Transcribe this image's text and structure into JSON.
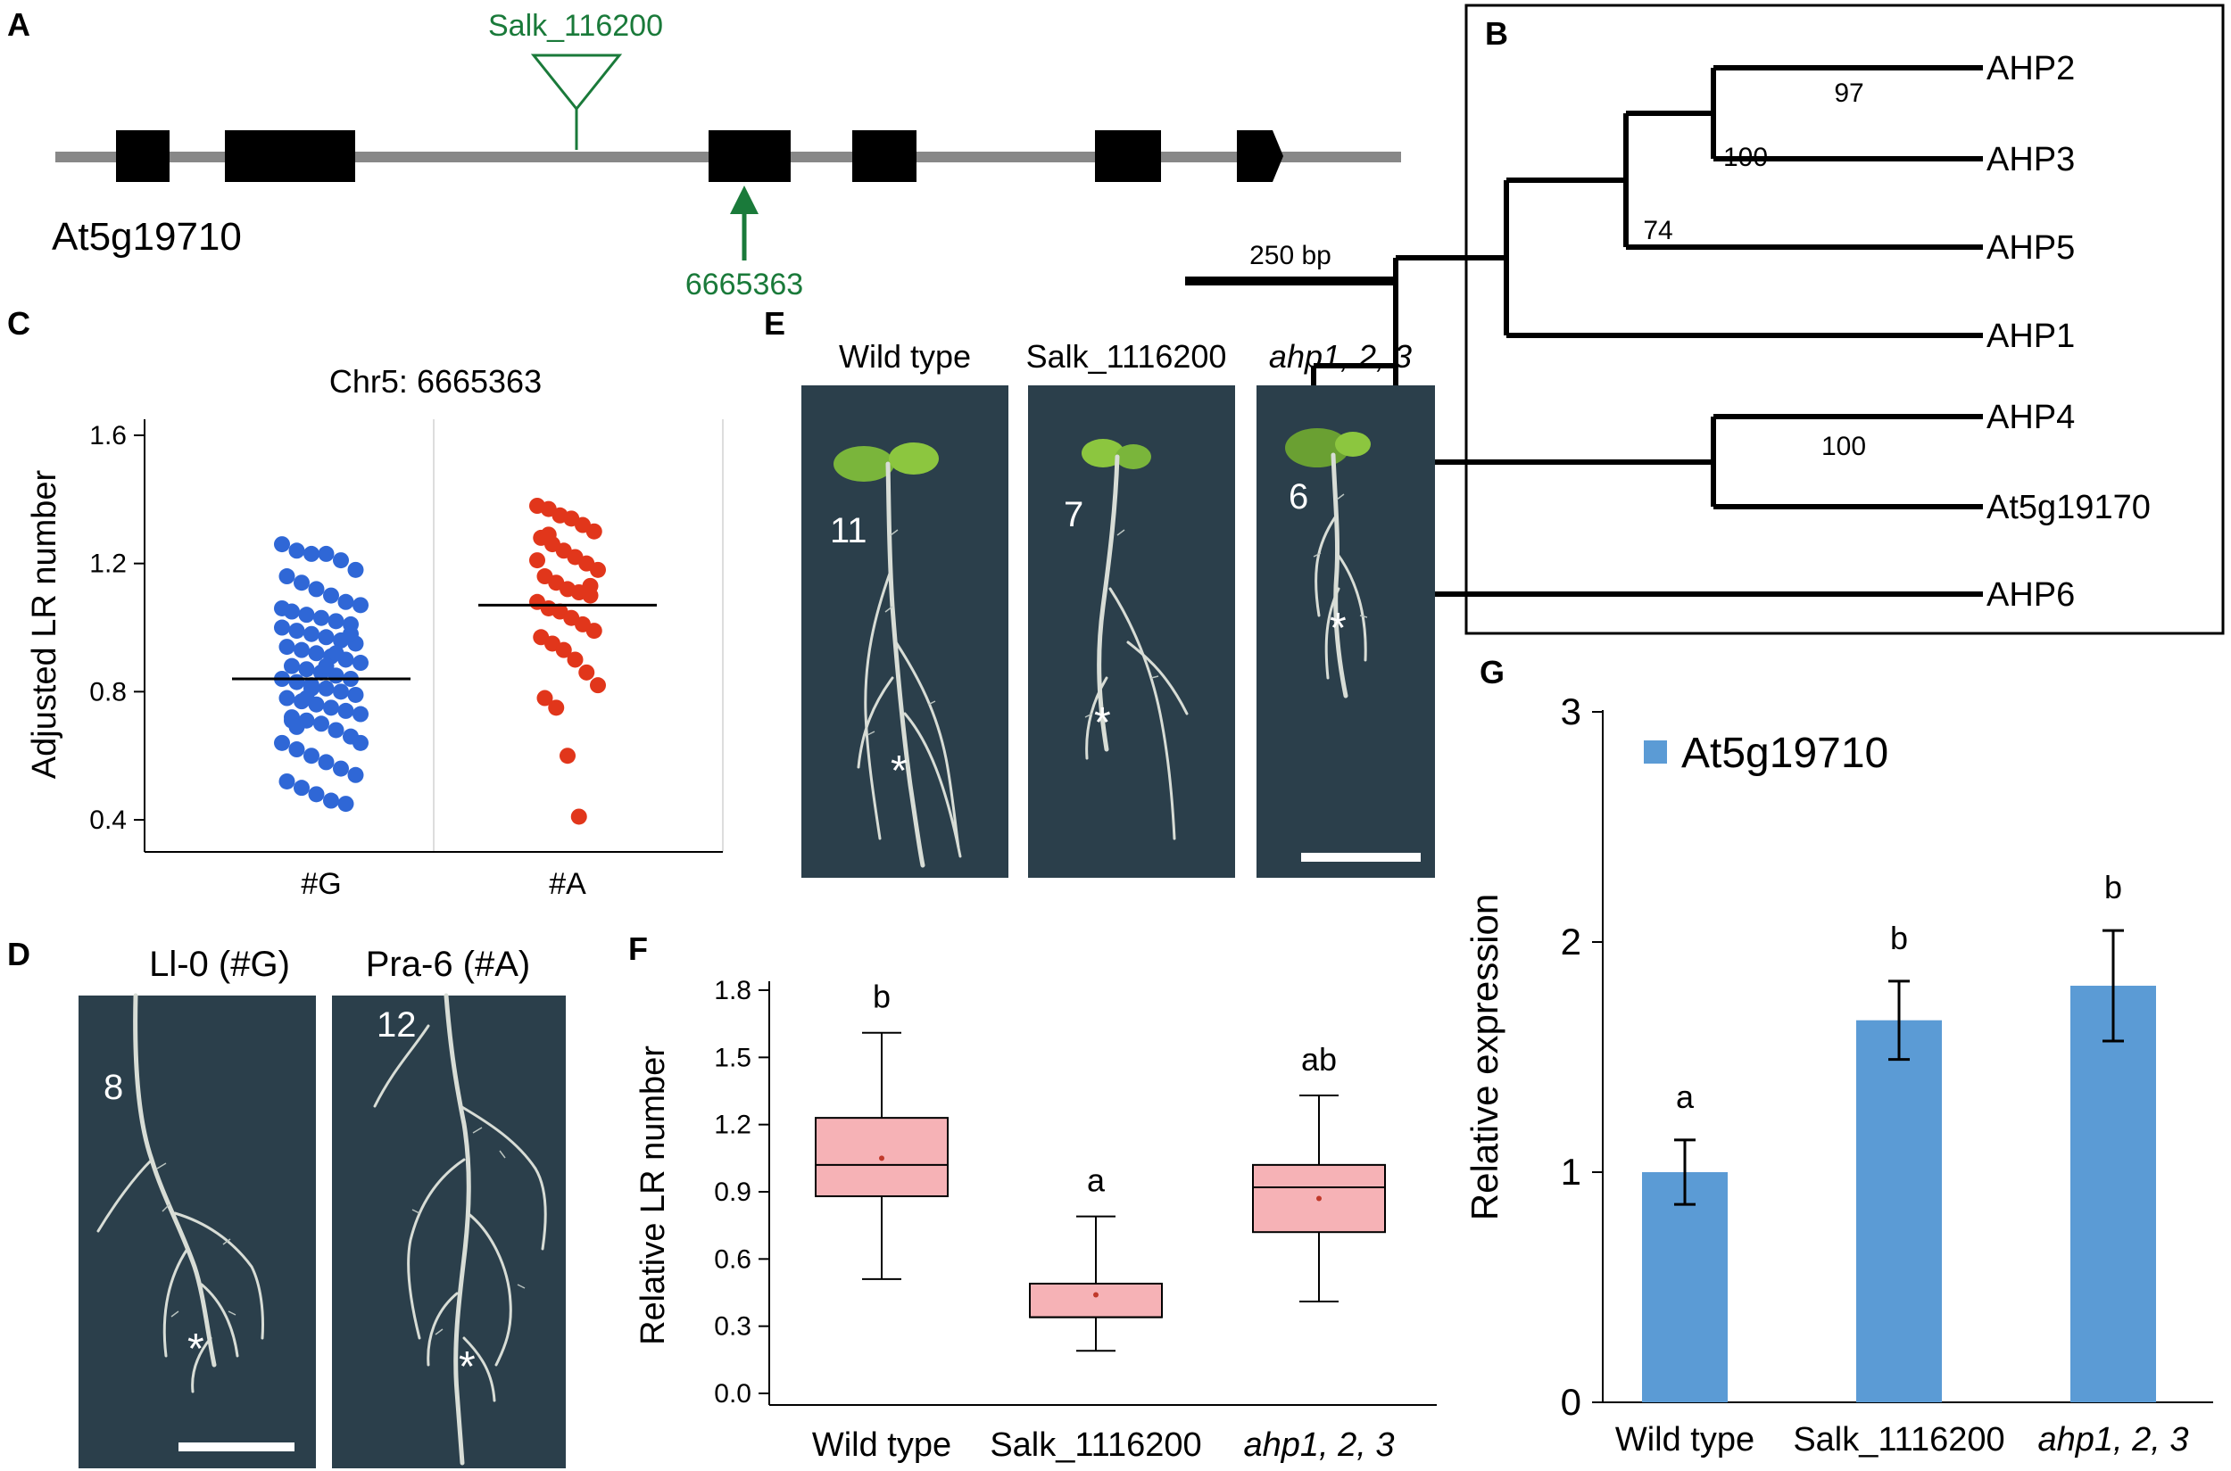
{
  "panel_labels": [
    "A",
    "B",
    "C",
    "D",
    "E",
    "F",
    "G"
  ],
  "panel_a": {
    "gene": "At5g19710",
    "insertion_label": "Salk_116200",
    "snp_position": "6665363",
    "scale_bar_label": "250 bp",
    "colors": {
      "gene_line": "#888888",
      "exon": "#000000",
      "annotation": "#1a7a3a"
    }
  },
  "panel_b": {
    "leaves": [
      "AHP2",
      "AHP3",
      "AHP5",
      "AHP1",
      "AHP4",
      "At5g19170",
      "AHP6"
    ],
    "bootstrap": [
      "97",
      "100",
      "74",
      "100"
    ]
  },
  "panel_c": {
    "chart_data": {
      "type": "scatter",
      "title": "Chr5: 6665363",
      "ylabel": "Adjusted LR number",
      "xlabel": "",
      "categories": [
        "#G",
        "#A"
      ],
      "yticks": [
        "1.6",
        "1.2",
        "0.8",
        "0.4"
      ],
      "ylim": [
        0.3,
        1.65
      ],
      "series": [
        {
          "name": "#G",
          "color": "#2f67d6",
          "mean": 0.84,
          "values": [
            1.26,
            1.24,
            1.23,
            1.23,
            1.21,
            1.18,
            1.16,
            1.14,
            1.12,
            1.1,
            1.08,
            1.07,
            1.05,
            1.04,
            1.03,
            1.02,
            1.01,
            1.0,
            0.99,
            0.98,
            0.97,
            0.96,
            0.95,
            0.94,
            0.93,
            0.92,
            0.91,
            0.9,
            0.89,
            0.88,
            0.87,
            0.86,
            0.85,
            0.84,
            0.84,
            0.83,
            0.82,
            0.81,
            0.8,
            0.79,
            0.78,
            0.77,
            0.76,
            0.75,
            0.74,
            0.73,
            0.72,
            0.71,
            0.7,
            0.68,
            0.66,
            0.64,
            0.62,
            0.6,
            0.58,
            0.56,
            0.54,
            0.52,
            0.5,
            0.48,
            0.46,
            0.45,
            0.64,
            0.71,
            0.78,
            0.86,
            0.92,
            0.98,
            1.06,
            0.69,
            0.81,
            0.88
          ]
        },
        {
          "name": "#A",
          "color": "#e1361b",
          "mean": 1.07,
          "values": [
            1.38,
            1.37,
            1.35,
            1.34,
            1.32,
            1.3,
            1.28,
            1.26,
            1.24,
            1.22,
            1.2,
            1.18,
            1.16,
            1.14,
            1.12,
            1.11,
            1.1,
            1.08,
            1.06,
            1.05,
            1.03,
            1.01,
            0.99,
            0.97,
            0.95,
            0.93,
            0.9,
            0.86,
            0.82,
            0.78,
            0.75,
            0.6,
            0.41,
            1.13,
            1.21,
            1.29
          ]
        }
      ]
    }
  },
  "panel_d": {
    "titles": [
      "Ll-0 (#G)",
      "Pra-6 (#A)"
    ],
    "counts": [
      "8",
      "12"
    ],
    "asterisk": "*"
  },
  "panel_e": {
    "titles": [
      "Wild type",
      "Salk_1116200",
      "ahp1, 2, 3"
    ],
    "counts": [
      "11",
      "7",
      "6"
    ],
    "asterisk": "*"
  },
  "panel_f": {
    "chart_data": {
      "type": "box",
      "ylabel": "Relative LR number",
      "categories": [
        "Wild type",
        "Salk_1116200",
        "ahp1, 2, 3"
      ],
      "yticks": [
        "1.8",
        "1.5",
        "1.2",
        "0.9",
        "0.6",
        "0.3",
        "0.0"
      ],
      "ylim": [
        0,
        1.8
      ],
      "boxes": [
        {
          "name": "Wild type",
          "min": 0.51,
          "q1": 0.88,
          "median": 1.02,
          "q3": 1.23,
          "max": 1.61,
          "mean": 1.05,
          "letter": "b"
        },
        {
          "name": "Salk_1116200",
          "min": 0.19,
          "q1": 0.34,
          "median": 0.34,
          "q3": 0.49,
          "max": 0.79,
          "mean": 0.44,
          "letter": "a"
        },
        {
          "name": "ahp1, 2, 3",
          "min": 0.41,
          "q1": 0.72,
          "median": 0.92,
          "q3": 1.02,
          "max": 1.33,
          "mean": 0.87,
          "letter": "ab"
        }
      ],
      "box_color": "#f6b2b6"
    }
  },
  "panel_g": {
    "chart_data": {
      "type": "bar",
      "ylabel": "Relative expression",
      "legend": "At5g19710",
      "categories": [
        "Wild type",
        "Salk_1116200",
        "ahp1, 2, 3"
      ],
      "values": [
        1.0,
        1.66,
        1.81
      ],
      "errors": [
        0.14,
        0.17,
        0.24
      ],
      "letters": [
        "a",
        "b",
        "b"
      ],
      "yticks": [
        "3",
        "2",
        "1",
        "0"
      ],
      "ylim": [
        0,
        3
      ],
      "bar_color": "#5b9bd5"
    }
  }
}
